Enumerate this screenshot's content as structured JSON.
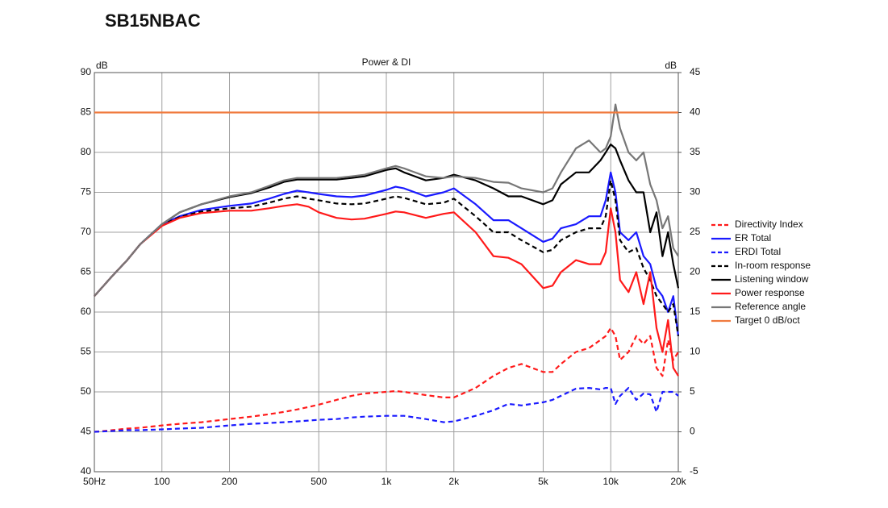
{
  "chart_data": {
    "type": "line",
    "page_title": "SB15NBAC",
    "title": "Power & DI",
    "y_label": "dB",
    "y2_label": "dB",
    "log_x": true,
    "grid": true,
    "x": [
      50,
      60,
      70,
      80,
      100,
      120,
      150,
      200,
      250,
      300,
      350,
      400,
      450,
      500,
      600,
      700,
      800,
      1000,
      1100,
      1200,
      1500,
      1800,
      2000,
      2500,
      3000,
      3500,
      4000,
      5000,
      5500,
      6000,
      7000,
      8000,
      9000,
      9500,
      10000,
      10500,
      11000,
      12000,
      13000,
      14000,
      15000,
      16000,
      17000,
      18000,
      19000,
      20000
    ],
    "xlim": [
      50,
      20000
    ],
    "xticks": [
      {
        "value": 50,
        "label": "50Hz"
      },
      100,
      200,
      500,
      {
        "value": 1000,
        "label": "1k"
      },
      {
        "value": 2000,
        "label": "2k"
      },
      {
        "value": 5000,
        "label": "5k"
      },
      {
        "value": 10000,
        "label": "10k"
      },
      {
        "value": 20000,
        "label": "20k"
      }
    ],
    "ylim": [
      40,
      90
    ],
    "yticks": [
      40,
      45,
      50,
      55,
      60,
      65,
      70,
      75,
      80,
      85,
      90
    ],
    "y2lim": [
      -5,
      45
    ],
    "y2ticks": [
      -5,
      0,
      5,
      10,
      15,
      20,
      25,
      30,
      35,
      40,
      45
    ],
    "series": [
      {
        "name": "Directivity Index",
        "color": "#ff1a1a",
        "dashed": true,
        "axis": "y2",
        "values": [
          0,
          0.2,
          0.4,
          0.5,
          0.8,
          1,
          1.2,
          1.6,
          1.9,
          2.2,
          2.5,
          2.8,
          3.1,
          3.4,
          4,
          4.5,
          4.8,
          5,
          5.1,
          5,
          4.6,
          4.3,
          4.3,
          5.5,
          7,
          8,
          8.5,
          7.5,
          7.5,
          8.5,
          10,
          10.5,
          11.5,
          12,
          13,
          12,
          9,
          10,
          12,
          11,
          12,
          8,
          7,
          11.5,
          9,
          10
        ]
      },
      {
        "name": "ER Total",
        "color": "#1a1aff",
        "dashed": false,
        "values": [
          62,
          64.5,
          66.5,
          68.5,
          71,
          72,
          72.8,
          73.3,
          73.6,
          74.2,
          74.8,
          75.2,
          75,
          74.8,
          74.5,
          74.4,
          74.6,
          75.3,
          75.7,
          75.5,
          74.5,
          75,
          75.5,
          73.5,
          71.5,
          71.5,
          70.5,
          68.8,
          69.2,
          70.5,
          71,
          72,
          72,
          74,
          77.5,
          75,
          70,
          69,
          70,
          67,
          66,
          63,
          62,
          60,
          62,
          57
        ]
      },
      {
        "name": "ERDI Total",
        "color": "#1a1aff",
        "dashed": true,
        "axis": "y2",
        "values": [
          0,
          0.1,
          0.2,
          0.2,
          0.3,
          0.4,
          0.5,
          0.8,
          1,
          1.1,
          1.2,
          1.3,
          1.4,
          1.5,
          1.6,
          1.8,
          1.9,
          2,
          2,
          2,
          1.6,
          1.2,
          1.3,
          2,
          2.7,
          3.5,
          3.3,
          3.7,
          4,
          4.5,
          5.4,
          5.5,
          5.3,
          5.5,
          5.5,
          3.5,
          4.5,
          5.5,
          4,
          4.8,
          4.7,
          2.5,
          5,
          5,
          5,
          4.5
        ]
      },
      {
        "name": "In-room response",
        "color": "#000000",
        "dashed": true,
        "values": [
          62,
          64.5,
          66.5,
          68.5,
          70.9,
          71.9,
          72.6,
          73,
          73.2,
          73.7,
          74.2,
          74.5,
          74.2,
          74,
          73.6,
          73.5,
          73.6,
          74.2,
          74.5,
          74.3,
          73.5,
          73.7,
          74.2,
          72,
          70,
          70,
          69,
          67.5,
          67.8,
          69,
          70,
          70.5,
          70.5,
          72,
          76.5,
          74,
          69,
          67.5,
          68,
          65.5,
          64,
          62,
          61,
          60,
          61,
          57
        ]
      },
      {
        "name": "Listening window",
        "color": "#000000",
        "dashed": false,
        "values": [
          62,
          64.5,
          66.5,
          68.5,
          71,
          72.5,
          73.5,
          74.4,
          74.9,
          75.6,
          76.3,
          76.6,
          76.6,
          76.6,
          76.6,
          76.8,
          77,
          77.8,
          78,
          77.5,
          76.5,
          76.8,
          77.2,
          76.5,
          75.5,
          74.5,
          74.5,
          73.5,
          74,
          76,
          77.5,
          77.5,
          79,
          80,
          81,
          80.5,
          79,
          76.5,
          75,
          75,
          70,
          72.5,
          67,
          70,
          66,
          63
        ]
      },
      {
        "name": "Power response",
        "color": "#ff1a1a",
        "dashed": false,
        "values": [
          62,
          64.5,
          66.5,
          68.5,
          70.8,
          71.8,
          72.4,
          72.7,
          72.7,
          73,
          73.3,
          73.5,
          73.2,
          72.5,
          71.8,
          71.6,
          71.7,
          72.3,
          72.6,
          72.5,
          71.8,
          72.3,
          72.5,
          70,
          67,
          66.8,
          66,
          63,
          63.3,
          65,
          66.5,
          66,
          66,
          67.5,
          73,
          70,
          64,
          62.5,
          65,
          61,
          65,
          58,
          55,
          59,
          53,
          52
        ]
      },
      {
        "name": "Reference angle",
        "color": "#777777",
        "dashed": false,
        "values": [
          62,
          64.5,
          66.5,
          68.5,
          71,
          72.5,
          73.5,
          74.5,
          75,
          75.8,
          76.5,
          76.8,
          76.8,
          76.8,
          76.8,
          77,
          77.2,
          78,
          78.3,
          78,
          77,
          76.8,
          77,
          76.8,
          76.3,
          76.2,
          75.5,
          75,
          75.5,
          77.5,
          80.5,
          81.5,
          80,
          80.5,
          82,
          86,
          83,
          80,
          79,
          80,
          76,
          74,
          70.5,
          72,
          68,
          67
        ]
      },
      {
        "name": "Target 0 dB/oct",
        "color": "#f07b3f",
        "dashed": false,
        "values": [
          85,
          85,
          85,
          85,
          85,
          85,
          85,
          85,
          85,
          85,
          85,
          85,
          85,
          85,
          85,
          85,
          85,
          85,
          85,
          85,
          85,
          85,
          85,
          85,
          85,
          85,
          85,
          85,
          85,
          85,
          85,
          85,
          85,
          85,
          85,
          85,
          85,
          85,
          85,
          85,
          85,
          85,
          85,
          85,
          85,
          85
        ]
      }
    ]
  }
}
